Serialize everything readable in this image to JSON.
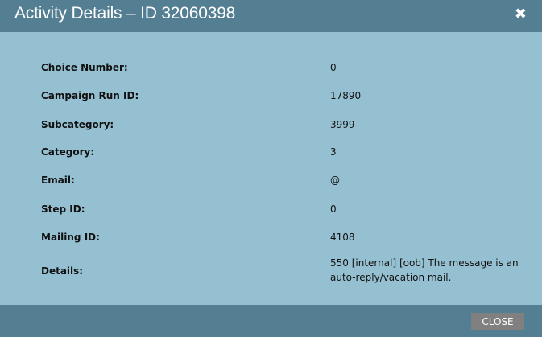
{
  "dialog": {
    "title": "Activity Details – ID 32060398",
    "close_icon": "close-icon",
    "close_label": "CLOSE"
  },
  "fields": [
    {
      "label": "Choice Number:",
      "value": "0"
    },
    {
      "label": "Campaign Run ID:",
      "value": "17890"
    },
    {
      "label": "Subcategory:",
      "value": "3999"
    },
    {
      "label": "Category:",
      "value": "3"
    },
    {
      "label": "Email:",
      "value": "@"
    },
    {
      "label": "Step ID:",
      "value": "0"
    },
    {
      "label": "Mailing ID:",
      "value": "4108"
    },
    {
      "label": "Details:",
      "value": "550 [internal] [oob] The message is an auto-reply/vacation mail."
    }
  ],
  "colors": {
    "header": "#547f93",
    "body": "#95c0d1",
    "button": "#808080"
  }
}
